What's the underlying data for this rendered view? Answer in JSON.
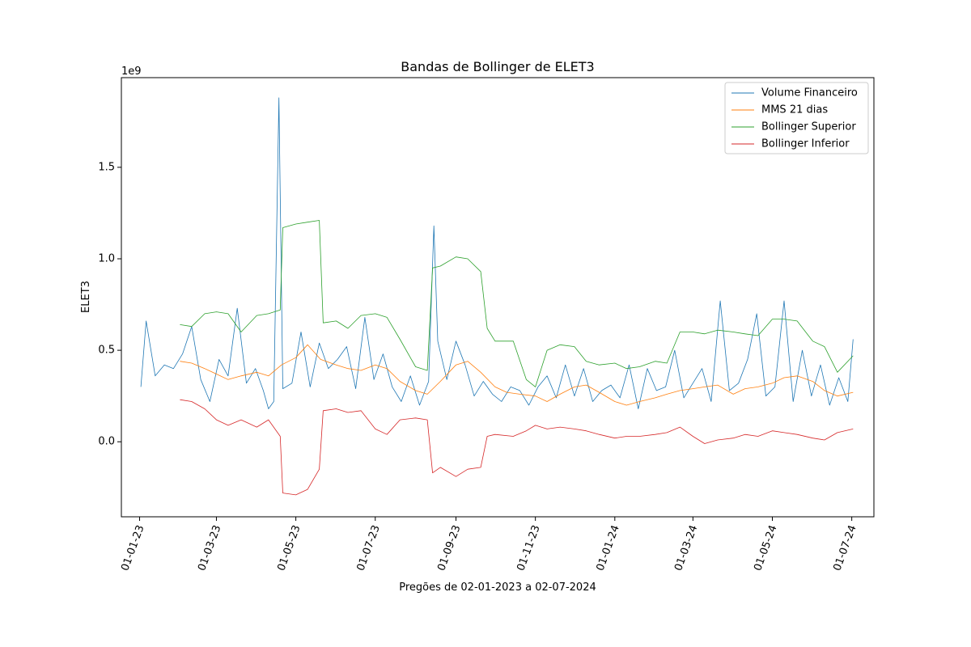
{
  "chart_data": {
    "type": "line",
    "title": "Bandas de Bollinger de ELET3",
    "xlabel": "Pregões de 02-01-2023 a 02-07-2024",
    "ylabel": "ELET3",
    "y_multiplier_label": "1e9",
    "ylim": [
      -0.41,
      1.99
    ],
    "xlim": [
      "2022-12-18",
      "2024-07-18"
    ],
    "grid": false,
    "legend_position": "top-right",
    "y_ticks": [
      {
        "value": 0.0,
        "label": "0.0"
      },
      {
        "value": 0.5,
        "label": "0.5"
      },
      {
        "value": 1.0,
        "label": "1.0"
      },
      {
        "value": 1.5,
        "label": "1.5"
      }
    ],
    "x_ticks": [
      {
        "date": "2023-01-01",
        "label": "01-01-23"
      },
      {
        "date": "2023-03-01",
        "label": "01-03-23"
      },
      {
        "date": "2023-05-01",
        "label": "01-05-23"
      },
      {
        "date": "2023-07-01",
        "label": "01-07-23"
      },
      {
        "date": "2023-09-01",
        "label": "01-09-23"
      },
      {
        "date": "2023-11-01",
        "label": "01-11-23"
      },
      {
        "date": "2024-01-01",
        "label": "01-01-24"
      },
      {
        "date": "2024-03-01",
        "label": "01-03-24"
      },
      {
        "date": "2024-05-01",
        "label": "01-05-24"
      },
      {
        "date": "2024-07-01",
        "label": "01-07-24"
      }
    ],
    "series": [
      {
        "name": "Volume Financeiro",
        "color": "#1f77b4",
        "x": [
          "2023-01-02",
          "2023-01-06",
          "2023-01-13",
          "2023-01-20",
          "2023-01-27",
          "2023-02-03",
          "2023-02-10",
          "2023-02-17",
          "2023-02-24",
          "2023-03-03",
          "2023-03-10",
          "2023-03-17",
          "2023-03-24",
          "2023-03-31",
          "2023-04-06",
          "2023-04-10",
          "2023-04-14",
          "2023-04-18",
          "2023-04-21",
          "2023-04-28",
          "2023-05-05",
          "2023-05-12",
          "2023-05-19",
          "2023-05-26",
          "2023-06-02",
          "2023-06-09",
          "2023-06-16",
          "2023-06-23",
          "2023-06-30",
          "2023-07-07",
          "2023-07-14",
          "2023-07-21",
          "2023-07-28",
          "2023-08-04",
          "2023-08-11",
          "2023-08-15",
          "2023-08-18",
          "2023-08-25",
          "2023-09-01",
          "2023-09-08",
          "2023-09-15",
          "2023-09-22",
          "2023-09-29",
          "2023-10-06",
          "2023-10-13",
          "2023-10-20",
          "2023-10-27",
          "2023-11-03",
          "2023-11-10",
          "2023-11-17",
          "2023-11-24",
          "2023-12-01",
          "2023-12-08",
          "2023-12-15",
          "2023-12-22",
          "2023-12-29",
          "2024-01-05",
          "2024-01-12",
          "2024-01-19",
          "2024-01-26",
          "2024-02-02",
          "2024-02-09",
          "2024-02-16",
          "2024-02-23",
          "2024-03-01",
          "2024-03-08",
          "2024-03-15",
          "2024-03-22",
          "2024-03-29",
          "2024-04-05",
          "2024-04-12",
          "2024-04-19",
          "2024-04-26",
          "2024-05-03",
          "2024-05-10",
          "2024-05-17",
          "2024-05-24",
          "2024-05-31",
          "2024-06-07",
          "2024-06-14",
          "2024-06-21",
          "2024-06-28",
          "2024-07-02"
        ],
        "values": [
          0.3,
          0.66,
          0.36,
          0.42,
          0.4,
          0.48,
          0.63,
          0.34,
          0.22,
          0.45,
          0.36,
          0.73,
          0.32,
          0.4,
          0.28,
          0.18,
          0.22,
          1.88,
          0.29,
          0.32,
          0.6,
          0.3,
          0.54,
          0.4,
          0.45,
          0.52,
          0.29,
          0.68,
          0.34,
          0.48,
          0.3,
          0.22,
          0.36,
          0.2,
          0.33,
          1.18,
          0.55,
          0.34,
          0.55,
          0.42,
          0.25,
          0.33,
          0.26,
          0.22,
          0.3,
          0.28,
          0.2,
          0.3,
          0.36,
          0.24,
          0.42,
          0.25,
          0.4,
          0.22,
          0.28,
          0.31,
          0.24,
          0.42,
          0.18,
          0.4,
          0.28,
          0.3,
          0.5,
          0.24,
          0.32,
          0.4,
          0.22,
          0.77,
          0.28,
          0.32,
          0.45,
          0.7,
          0.25,
          0.3,
          0.77,
          0.22,
          0.5,
          0.25,
          0.42,
          0.2,
          0.35,
          0.22,
          0.56
        ]
      },
      {
        "name": "MMS 21 dias",
        "color": "#ff7f0e",
        "x": [
          "2023-02-01",
          "2023-02-10",
          "2023-02-20",
          "2023-03-01",
          "2023-03-10",
          "2023-03-20",
          "2023-04-01",
          "2023-04-10",
          "2023-04-20",
          "2023-05-01",
          "2023-05-10",
          "2023-05-20",
          "2023-06-01",
          "2023-06-10",
          "2023-06-20",
          "2023-07-01",
          "2023-07-10",
          "2023-07-20",
          "2023-08-01",
          "2023-08-10",
          "2023-08-20",
          "2023-09-01",
          "2023-09-10",
          "2023-09-20",
          "2023-10-01",
          "2023-10-10",
          "2023-10-20",
          "2023-11-01",
          "2023-11-10",
          "2023-11-20",
          "2023-12-01",
          "2023-12-10",
          "2023-12-20",
          "2024-01-01",
          "2024-01-10",
          "2024-01-20",
          "2024-02-01",
          "2024-02-10",
          "2024-02-20",
          "2024-03-01",
          "2024-03-10",
          "2024-03-20",
          "2024-04-01",
          "2024-04-10",
          "2024-04-20",
          "2024-05-01",
          "2024-05-10",
          "2024-05-20",
          "2024-06-01",
          "2024-06-10",
          "2024-06-20",
          "2024-07-02"
        ],
        "values": [
          0.44,
          0.43,
          0.4,
          0.37,
          0.34,
          0.36,
          0.38,
          0.36,
          0.42,
          0.46,
          0.53,
          0.45,
          0.42,
          0.4,
          0.39,
          0.42,
          0.4,
          0.33,
          0.28,
          0.26,
          0.33,
          0.42,
          0.44,
          0.38,
          0.3,
          0.27,
          0.26,
          0.25,
          0.22,
          0.26,
          0.3,
          0.31,
          0.27,
          0.22,
          0.2,
          0.22,
          0.24,
          0.26,
          0.28,
          0.29,
          0.3,
          0.31,
          0.26,
          0.29,
          0.3,
          0.32,
          0.35,
          0.36,
          0.33,
          0.28,
          0.25,
          0.27
        ]
      },
      {
        "name": "Bollinger Superior",
        "color": "#2ca02c",
        "x": [
          "2023-02-01",
          "2023-02-10",
          "2023-02-20",
          "2023-03-01",
          "2023-03-10",
          "2023-03-20",
          "2023-04-01",
          "2023-04-10",
          "2023-04-19",
          "2023-04-21",
          "2023-05-01",
          "2023-05-10",
          "2023-05-19",
          "2023-05-22",
          "2023-06-01",
          "2023-06-10",
          "2023-06-20",
          "2023-07-01",
          "2023-07-10",
          "2023-07-20",
          "2023-08-01",
          "2023-08-10",
          "2023-08-14",
          "2023-08-20",
          "2023-09-01",
          "2023-09-10",
          "2023-09-20",
          "2023-09-25",
          "2023-10-01",
          "2023-10-15",
          "2023-10-25",
          "2023-11-01",
          "2023-11-10",
          "2023-11-20",
          "2023-12-01",
          "2023-12-10",
          "2023-12-20",
          "2024-01-01",
          "2024-01-10",
          "2024-01-20",
          "2024-02-01",
          "2024-02-10",
          "2024-02-20",
          "2024-03-01",
          "2024-03-10",
          "2024-03-20",
          "2024-04-01",
          "2024-04-10",
          "2024-04-20",
          "2024-05-01",
          "2024-05-10",
          "2024-05-20",
          "2024-06-01",
          "2024-06-10",
          "2024-06-20",
          "2024-07-02"
        ],
        "values": [
          0.64,
          0.63,
          0.7,
          0.71,
          0.7,
          0.6,
          0.69,
          0.7,
          0.72,
          1.17,
          1.19,
          1.2,
          1.21,
          0.65,
          0.66,
          0.62,
          0.69,
          0.7,
          0.68,
          0.56,
          0.41,
          0.39,
          0.95,
          0.96,
          1.01,
          1.0,
          0.93,
          0.62,
          0.55,
          0.55,
          0.34,
          0.3,
          0.5,
          0.53,
          0.52,
          0.44,
          0.42,
          0.43,
          0.4,
          0.41,
          0.44,
          0.43,
          0.6,
          0.6,
          0.59,
          0.61,
          0.6,
          0.59,
          0.58,
          0.67,
          0.67,
          0.66,
          0.55,
          0.52,
          0.38,
          0.47
        ]
      },
      {
        "name": "Bollinger Inferior",
        "color": "#d62728",
        "x": [
          "2023-02-01",
          "2023-02-10",
          "2023-02-20",
          "2023-03-01",
          "2023-03-10",
          "2023-03-20",
          "2023-04-01",
          "2023-04-10",
          "2023-04-19",
          "2023-04-21",
          "2023-05-01",
          "2023-05-10",
          "2023-05-19",
          "2023-05-22",
          "2023-06-01",
          "2023-06-10",
          "2023-06-20",
          "2023-07-01",
          "2023-07-10",
          "2023-07-20",
          "2023-08-01",
          "2023-08-10",
          "2023-08-14",
          "2023-08-20",
          "2023-09-01",
          "2023-09-10",
          "2023-09-20",
          "2023-09-25",
          "2023-10-01",
          "2023-10-15",
          "2023-10-25",
          "2023-11-01",
          "2023-11-10",
          "2023-11-20",
          "2023-12-01",
          "2023-12-10",
          "2023-12-20",
          "2024-01-01",
          "2024-01-10",
          "2024-01-20",
          "2024-02-01",
          "2024-02-10",
          "2024-02-20",
          "2024-03-01",
          "2024-03-10",
          "2024-03-20",
          "2024-04-01",
          "2024-04-10",
          "2024-04-20",
          "2024-05-01",
          "2024-05-10",
          "2024-05-20",
          "2024-06-01",
          "2024-06-10",
          "2024-06-20",
          "2024-07-02"
        ],
        "values": [
          0.23,
          0.22,
          0.18,
          0.12,
          0.09,
          0.12,
          0.08,
          0.12,
          0.03,
          -0.28,
          -0.29,
          -0.26,
          -0.15,
          0.17,
          0.18,
          0.16,
          0.17,
          0.07,
          0.04,
          0.12,
          0.13,
          0.12,
          -0.17,
          -0.14,
          -0.19,
          -0.15,
          -0.14,
          0.03,
          0.04,
          0.03,
          0.06,
          0.09,
          0.07,
          0.08,
          0.07,
          0.06,
          0.04,
          0.02,
          0.03,
          0.03,
          0.04,
          0.05,
          0.08,
          0.03,
          -0.01,
          0.01,
          0.02,
          0.04,
          0.03,
          0.06,
          0.05,
          0.04,
          0.02,
          0.01,
          0.05,
          0.07
        ]
      }
    ]
  }
}
